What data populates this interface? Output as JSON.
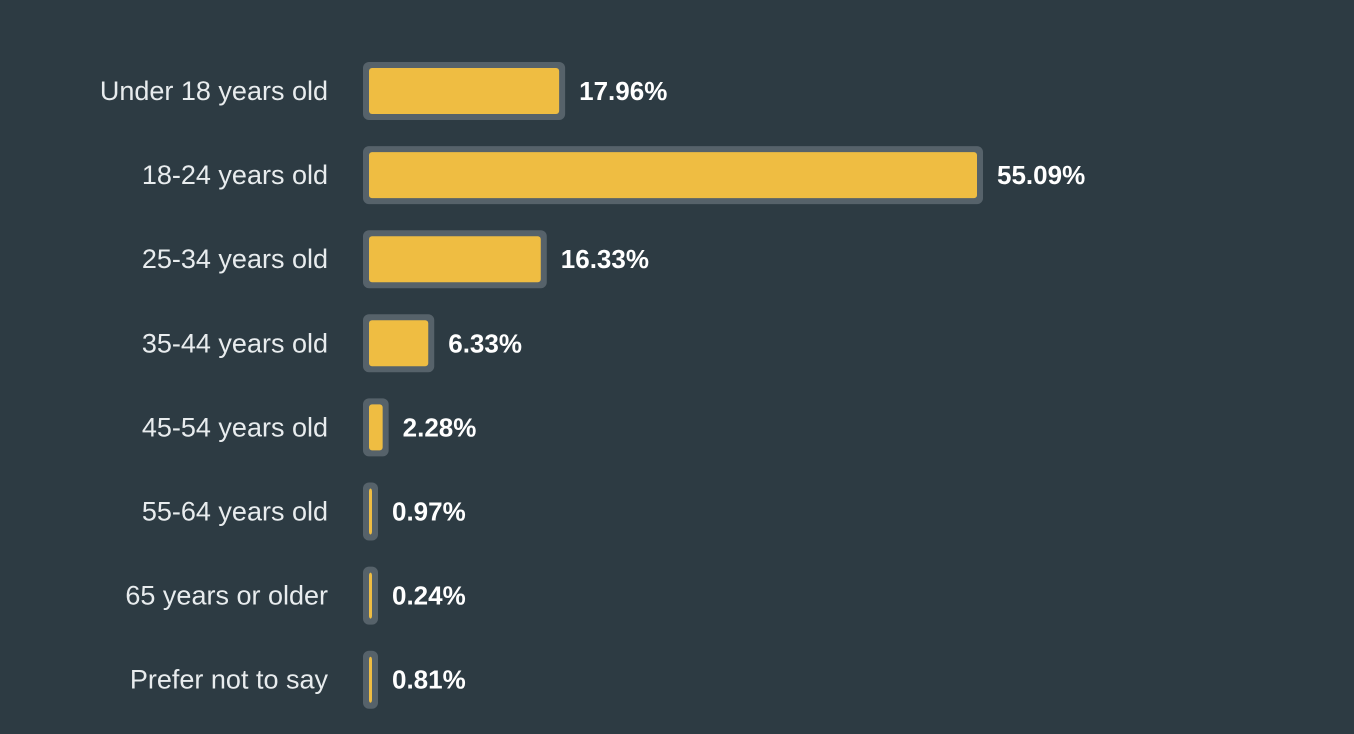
{
  "colors": {
    "background": "#2d3b43",
    "bar_fill": "#efbd42",
    "bar_border": "#56626a",
    "label_text": "#e8ecee",
    "value_text": "#ffffff"
  },
  "chart_data": {
    "type": "bar",
    "orientation": "horizontal",
    "categories": [
      "Under 18 years old",
      "18-24 years old",
      "25-34 years old",
      "35-44 years old",
      "45-54 years old",
      "55-64 years old",
      "65 years or older",
      "Prefer not to say"
    ],
    "values": [
      17.96,
      55.09,
      16.33,
      6.33,
      2.28,
      0.97,
      0.24,
      0.81
    ],
    "value_labels": [
      "17.96%",
      "55.09%",
      "16.33%",
      "6.33%",
      "2.28%",
      "0.97%",
      "0.24%",
      "0.81%"
    ],
    "unit": "%",
    "xlim": [
      0,
      55.09
    ],
    "grid": false,
    "legend": "none"
  }
}
